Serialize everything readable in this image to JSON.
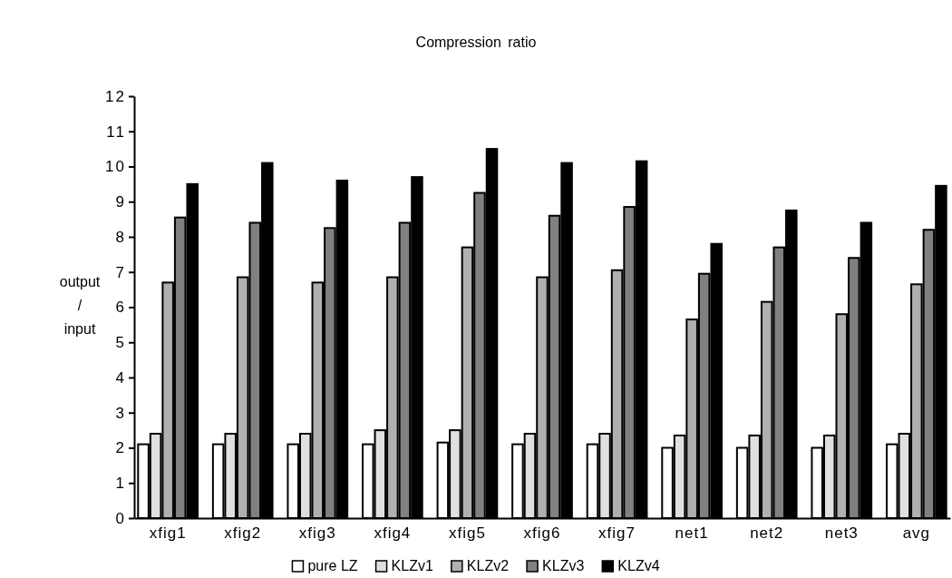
{
  "chart_data": {
    "type": "bar",
    "title": "Compression ratio",
    "ylabel": "output / input",
    "categories": [
      "xfig1",
      "xfig2",
      "xfig3",
      "xfig4",
      "xfig5",
      "xfig6",
      "xfig7",
      "net1",
      "net2",
      "net3",
      "avg"
    ],
    "series": [
      {
        "name": "pure LZ",
        "color": "#ffffff",
        "values": [
          2.1,
          2.1,
          2.1,
          2.1,
          2.15,
          2.1,
          2.1,
          2.0,
          2.0,
          2.0,
          2.1
        ]
      },
      {
        "name": "KLZv1",
        "color": "#e0e0e0",
        "values": [
          2.4,
          2.4,
          2.4,
          2.5,
          2.5,
          2.4,
          2.4,
          2.35,
          2.35,
          2.35,
          2.4
        ]
      },
      {
        "name": "KLZv2",
        "color": "#b0b0b0",
        "values": [
          6.7,
          6.85,
          6.7,
          6.85,
          7.7,
          6.85,
          7.05,
          5.65,
          6.15,
          5.8,
          6.65
        ]
      },
      {
        "name": "KLZv3",
        "color": "#808080",
        "values": [
          8.55,
          8.4,
          8.25,
          8.4,
          9.25,
          8.6,
          8.85,
          6.95,
          7.7,
          7.4,
          8.2
        ]
      },
      {
        "name": "KLZv4",
        "color": "#000000",
        "values": [
          9.5,
          10.1,
          9.6,
          9.7,
          10.5,
          10.1,
          10.15,
          7.8,
          8.75,
          8.4,
          9.45
        ]
      }
    ],
    "ylim": [
      0,
      12
    ],
    "yticks": [
      0,
      1,
      2,
      3,
      4,
      5,
      6,
      7,
      8,
      9,
      10,
      11,
      12
    ],
    "grid": false,
    "legend": "bottom"
  }
}
